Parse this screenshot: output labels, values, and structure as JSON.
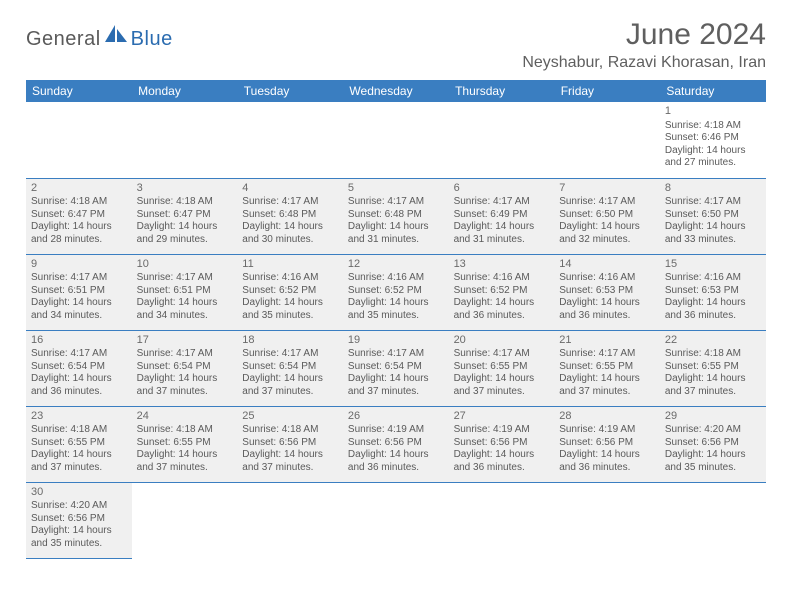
{
  "logo": {
    "part1": "General",
    "part2": "Blue",
    "shape_color": "#2b6cb0"
  },
  "title": "June 2024",
  "location": "Neyshabur, Razavi Khorasan, Iran",
  "colors": {
    "header_bg": "#3a7ec1",
    "header_text": "#ffffff",
    "cell_bg": "#f0f0f0",
    "text": "#5a5a5a",
    "border": "#3a7ec1"
  },
  "day_headers": [
    "Sunday",
    "Monday",
    "Tuesday",
    "Wednesday",
    "Thursday",
    "Friday",
    "Saturday"
  ],
  "weeks": [
    [
      null,
      null,
      null,
      null,
      null,
      null,
      {
        "n": "1",
        "sr": "Sunrise: 4:18 AM",
        "ss": "Sunset: 6:46 PM",
        "dl": "Daylight: 14 hours and 27 minutes."
      }
    ],
    [
      {
        "n": "2",
        "sr": "Sunrise: 4:18 AM",
        "ss": "Sunset: 6:47 PM",
        "dl": "Daylight: 14 hours and 28 minutes."
      },
      {
        "n": "3",
        "sr": "Sunrise: 4:18 AM",
        "ss": "Sunset: 6:47 PM",
        "dl": "Daylight: 14 hours and 29 minutes."
      },
      {
        "n": "4",
        "sr": "Sunrise: 4:17 AM",
        "ss": "Sunset: 6:48 PM",
        "dl": "Daylight: 14 hours and 30 minutes."
      },
      {
        "n": "5",
        "sr": "Sunrise: 4:17 AM",
        "ss": "Sunset: 6:48 PM",
        "dl": "Daylight: 14 hours and 31 minutes."
      },
      {
        "n": "6",
        "sr": "Sunrise: 4:17 AM",
        "ss": "Sunset: 6:49 PM",
        "dl": "Daylight: 14 hours and 31 minutes."
      },
      {
        "n": "7",
        "sr": "Sunrise: 4:17 AM",
        "ss": "Sunset: 6:50 PM",
        "dl": "Daylight: 14 hours and 32 minutes."
      },
      {
        "n": "8",
        "sr": "Sunrise: 4:17 AM",
        "ss": "Sunset: 6:50 PM",
        "dl": "Daylight: 14 hours and 33 minutes."
      }
    ],
    [
      {
        "n": "9",
        "sr": "Sunrise: 4:17 AM",
        "ss": "Sunset: 6:51 PM",
        "dl": "Daylight: 14 hours and 34 minutes."
      },
      {
        "n": "10",
        "sr": "Sunrise: 4:17 AM",
        "ss": "Sunset: 6:51 PM",
        "dl": "Daylight: 14 hours and 34 minutes."
      },
      {
        "n": "11",
        "sr": "Sunrise: 4:16 AM",
        "ss": "Sunset: 6:52 PM",
        "dl": "Daylight: 14 hours and 35 minutes."
      },
      {
        "n": "12",
        "sr": "Sunrise: 4:16 AM",
        "ss": "Sunset: 6:52 PM",
        "dl": "Daylight: 14 hours and 35 minutes."
      },
      {
        "n": "13",
        "sr": "Sunrise: 4:16 AM",
        "ss": "Sunset: 6:52 PM",
        "dl": "Daylight: 14 hours and 36 minutes."
      },
      {
        "n": "14",
        "sr": "Sunrise: 4:16 AM",
        "ss": "Sunset: 6:53 PM",
        "dl": "Daylight: 14 hours and 36 minutes."
      },
      {
        "n": "15",
        "sr": "Sunrise: 4:16 AM",
        "ss": "Sunset: 6:53 PM",
        "dl": "Daylight: 14 hours and 36 minutes."
      }
    ],
    [
      {
        "n": "16",
        "sr": "Sunrise: 4:17 AM",
        "ss": "Sunset: 6:54 PM",
        "dl": "Daylight: 14 hours and 36 minutes."
      },
      {
        "n": "17",
        "sr": "Sunrise: 4:17 AM",
        "ss": "Sunset: 6:54 PM",
        "dl": "Daylight: 14 hours and 37 minutes."
      },
      {
        "n": "18",
        "sr": "Sunrise: 4:17 AM",
        "ss": "Sunset: 6:54 PM",
        "dl": "Daylight: 14 hours and 37 minutes."
      },
      {
        "n": "19",
        "sr": "Sunrise: 4:17 AM",
        "ss": "Sunset: 6:54 PM",
        "dl": "Daylight: 14 hours and 37 minutes."
      },
      {
        "n": "20",
        "sr": "Sunrise: 4:17 AM",
        "ss": "Sunset: 6:55 PM",
        "dl": "Daylight: 14 hours and 37 minutes."
      },
      {
        "n": "21",
        "sr": "Sunrise: 4:17 AM",
        "ss": "Sunset: 6:55 PM",
        "dl": "Daylight: 14 hours and 37 minutes."
      },
      {
        "n": "22",
        "sr": "Sunrise: 4:18 AM",
        "ss": "Sunset: 6:55 PM",
        "dl": "Daylight: 14 hours and 37 minutes."
      }
    ],
    [
      {
        "n": "23",
        "sr": "Sunrise: 4:18 AM",
        "ss": "Sunset: 6:55 PM",
        "dl": "Daylight: 14 hours and 37 minutes."
      },
      {
        "n": "24",
        "sr": "Sunrise: 4:18 AM",
        "ss": "Sunset: 6:55 PM",
        "dl": "Daylight: 14 hours and 37 minutes."
      },
      {
        "n": "25",
        "sr": "Sunrise: 4:18 AM",
        "ss": "Sunset: 6:56 PM",
        "dl": "Daylight: 14 hours and 37 minutes."
      },
      {
        "n": "26",
        "sr": "Sunrise: 4:19 AM",
        "ss": "Sunset: 6:56 PM",
        "dl": "Daylight: 14 hours and 36 minutes."
      },
      {
        "n": "27",
        "sr": "Sunrise: 4:19 AM",
        "ss": "Sunset: 6:56 PM",
        "dl": "Daylight: 14 hours and 36 minutes."
      },
      {
        "n": "28",
        "sr": "Sunrise: 4:19 AM",
        "ss": "Sunset: 6:56 PM",
        "dl": "Daylight: 14 hours and 36 minutes."
      },
      {
        "n": "29",
        "sr": "Sunrise: 4:20 AM",
        "ss": "Sunset: 6:56 PM",
        "dl": "Daylight: 14 hours and 35 minutes."
      }
    ],
    [
      {
        "n": "30",
        "sr": "Sunrise: 4:20 AM",
        "ss": "Sunset: 6:56 PM",
        "dl": "Daylight: 14 hours and 35 minutes."
      },
      null,
      null,
      null,
      null,
      null,
      null
    ]
  ]
}
